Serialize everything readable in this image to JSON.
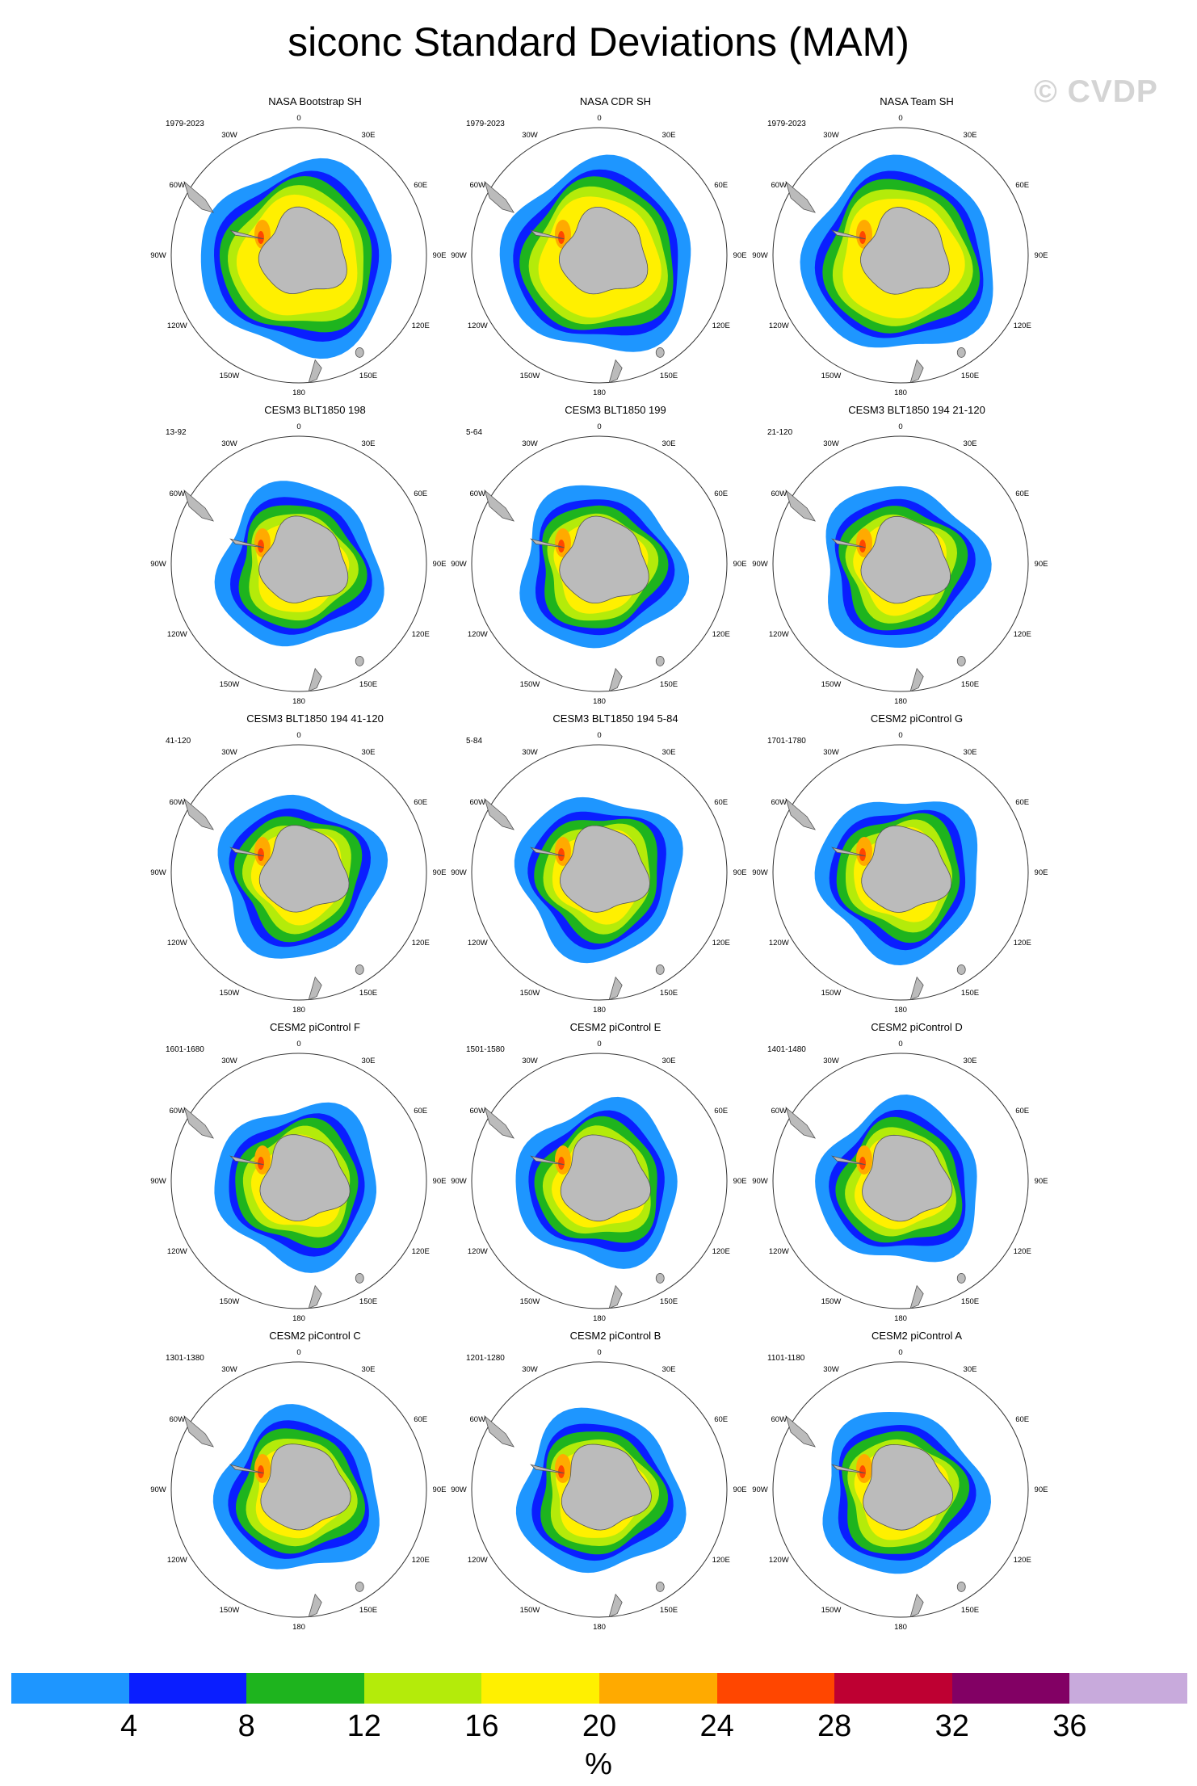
{
  "title": "siconc Standard Deviations (MAM)",
  "watermark": "© CVDP",
  "map_labels": {
    "top": "0",
    "ne1": "30E",
    "ne2": "60E",
    "east": "90E",
    "se1": "120E",
    "se2": "150E",
    "bottom": "180",
    "sw2": "150W",
    "sw1": "120W",
    "west": "90W",
    "nw2": "60W",
    "nw1": "30W"
  },
  "panels": [
    {
      "title": "NASA Bootstrap SH",
      "period": "1979-2023"
    },
    {
      "title": "NASA CDR SH",
      "period": "1979-2023"
    },
    {
      "title": "NASA Team SH",
      "period": "1979-2023"
    },
    {
      "title": "CESM3 BLT1850 198",
      "period": "13-92"
    },
    {
      "title": "CESM3 BLT1850 199",
      "period": "5-64"
    },
    {
      "title": "CESM3 BLT1850 194 21-120",
      "period": "21-120"
    },
    {
      "title": "CESM3 BLT1850 194 41-120",
      "period": "41-120"
    },
    {
      "title": "CESM3 BLT1850 194 5-84",
      "period": "5-84"
    },
    {
      "title": "CESM2 piControl G",
      "period": "1701-1780"
    },
    {
      "title": "CESM2 piControl F",
      "period": "1601-1680"
    },
    {
      "title": "CESM2 piControl E",
      "period": "1501-1580"
    },
    {
      "title": "CESM2 piControl D",
      "period": "1401-1480"
    },
    {
      "title": "CESM2 piControl C",
      "period": "1301-1380"
    },
    {
      "title": "CESM2 piControl B",
      "period": "1201-1280"
    },
    {
      "title": "CESM2 piControl A",
      "period": "1101-1180"
    }
  ],
  "colorbar": {
    "colors": [
      "#1e96ff",
      "#0a1eff",
      "#1eb41e",
      "#b4eb0a",
      "#fff000",
      "#ffaa00",
      "#ff4600",
      "#be0032",
      "#820064",
      "#c8aadc"
    ],
    "ticks": [
      "4",
      "8",
      "12",
      "16",
      "20",
      "24",
      "28",
      "32",
      "36"
    ],
    "units": "%"
  }
}
